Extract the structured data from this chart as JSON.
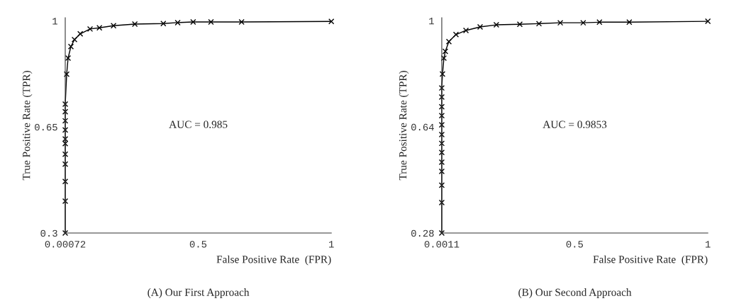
{
  "chart_data": [
    {
      "type": "line",
      "title": "(A) Our First Approach",
      "xlabel": "False Positive Rate  (FPR)",
      "ylabel": "True Positive Rate (TPR)",
      "annotations": [
        "AUC = 0.985"
      ],
      "marker": "cross",
      "line_style": "solid",
      "grid": false,
      "xlim": [
        0.00072,
        1
      ],
      "ylim": [
        0.3,
        1.01
      ],
      "xticks": [
        0.00072,
        0.5,
        1
      ],
      "yticks": [
        0.3,
        0.65,
        1
      ],
      "series": [
        {
          "color": "#000000",
          "x": [
            0.00072,
            0.00072,
            0.00072,
            0.00072,
            0.00072,
            0.00072,
            0.00072,
            0.00072,
            0.00072,
            0.00072,
            0.00072,
            0.0061,
            0.0114,
            0.022,
            0.0354,
            0.057,
            0.094,
            0.129,
            0.182,
            0.262,
            0.369,
            0.423,
            0.481,
            0.548,
            0.663,
            1.0
          ],
          "values": [
            0.3,
            0.405,
            0.47,
            0.527,
            0.56,
            0.595,
            0.61,
            0.64,
            0.67,
            0.7,
            0.725,
            0.824,
            0.877,
            0.915,
            0.938,
            0.957,
            0.973,
            0.977,
            0.984,
            0.989,
            0.991,
            0.994,
            0.996,
            0.996,
            0.996,
            0.998
          ]
        }
      ]
    },
    {
      "type": "line",
      "title": "(B) Our Second Approach",
      "xlabel": "False Positive Rate  (FPR)",
      "ylabel": "True Positive Rate (TPR)",
      "annotations": [
        "AUC = 0.9853"
      ],
      "marker": "cross",
      "line_style": "solid",
      "grid": false,
      "xlim": [
        0.0011,
        1
      ],
      "ylim": [
        0.28,
        1.01
      ],
      "xticks": [
        0.0011,
        0.5,
        1
      ],
      "yticks": [
        0.28,
        0.64,
        1
      ],
      "series": [
        {
          "color": "#000000",
          "x": [
            0.0011,
            0.0011,
            0.0011,
            0.0011,
            0.0011,
            0.0011,
            0.0011,
            0.0011,
            0.0011,
            0.0011,
            0.0011,
            0.0011,
            0.0011,
            0.0038,
            0.0091,
            0.0144,
            0.0278,
            0.0544,
            0.0918,
            0.145,
            0.206,
            0.294,
            0.366,
            0.446,
            0.532,
            0.593,
            0.705,
            1.0
          ],
          "values": [
            0.28,
            0.383,
            0.442,
            0.489,
            0.52,
            0.553,
            0.584,
            0.614,
            0.647,
            0.678,
            0.708,
            0.741,
            0.772,
            0.819,
            0.873,
            0.896,
            0.929,
            0.953,
            0.967,
            0.979,
            0.986,
            0.988,
            0.99,
            0.993,
            0.993,
            0.995,
            0.995,
            0.998
          ]
        }
      ]
    }
  ]
}
